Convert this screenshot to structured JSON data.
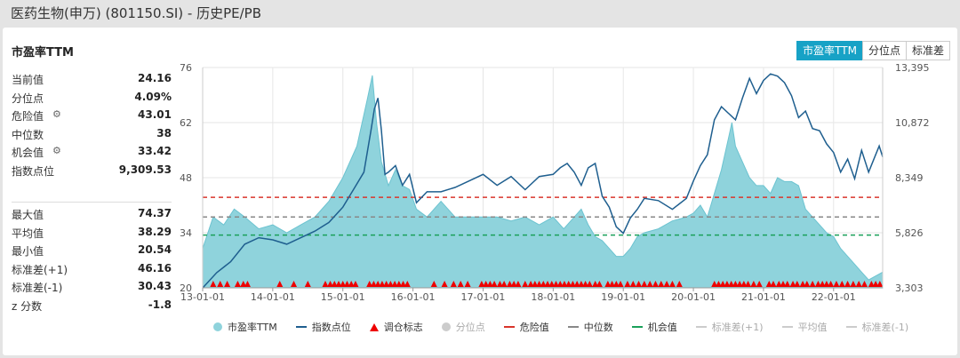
{
  "window_title": "医药生物(申万) (801150.SI) - 历史PE/PB",
  "panel_title": "市盈率TTM",
  "tabs": [
    {
      "label": "市盈率TTM",
      "active": true
    },
    {
      "label": "分位点",
      "active": false
    },
    {
      "label": "标准差",
      "active": false
    }
  ],
  "stats_top": [
    {
      "label": "当前值",
      "value": "24.16",
      "gear": false
    },
    {
      "label": "分位点",
      "value": "4.09%",
      "gear": false
    },
    {
      "label": "危险值",
      "value": "43.01",
      "gear": true
    },
    {
      "label": "中位数",
      "value": "38",
      "gear": false
    },
    {
      "label": "机会值",
      "value": "33.42",
      "gear": true
    },
    {
      "label": "指数点位",
      "value": "9,309.53",
      "gear": false
    }
  ],
  "stats_bottom": [
    {
      "label": "最大值",
      "value": "74.37"
    },
    {
      "label": "平均值",
      "value": "38.29"
    },
    {
      "label": "最小值",
      "value": "20.54"
    },
    {
      "label": "标准差(+1)",
      "value": "46.16"
    },
    {
      "label": "标准差(-1)",
      "value": "30.43"
    },
    {
      "label": "z 分数",
      "value": "-1.8"
    }
  ],
  "legend": [
    {
      "label": "市盈率TTM",
      "type": "dot",
      "color": "#8fd3dc",
      "active": true
    },
    {
      "label": "指数点位",
      "type": "line",
      "color": "#1f5f8f",
      "active": true
    },
    {
      "label": "调仓标志",
      "type": "triangle",
      "color": "#ee0000",
      "active": true
    },
    {
      "label": "分位点",
      "type": "dot",
      "color": "#cccccc",
      "active": false
    },
    {
      "label": "危险值",
      "type": "dash",
      "color": "#d9342b",
      "active": true
    },
    {
      "label": "中位数",
      "type": "dash",
      "color": "#888888",
      "active": true
    },
    {
      "label": "机会值",
      "type": "dash",
      "color": "#1aa05a",
      "active": true
    },
    {
      "label": "标准差(+1)",
      "type": "dash",
      "color": "#cccccc",
      "active": false
    },
    {
      "label": "平均值",
      "type": "dash",
      "color": "#cccccc",
      "active": false
    },
    {
      "label": "标准差(-1)",
      "type": "dash",
      "color": "#cccccc",
      "active": false
    }
  ],
  "chart_data": {
    "type": "area",
    "x_tick_labels": [
      "13-01-01",
      "14-01-01",
      "15-01-01",
      "16-01-01",
      "17-01-01",
      "18-01-01",
      "19-01-01",
      "20-01-01",
      "21-01-01",
      "22-01-01"
    ],
    "y_left_ticks": [
      "76",
      "62",
      "48",
      "34",
      "20"
    ],
    "y_right_ticks": [
      "13,395",
      "10,872",
      "8,349",
      "5,826",
      "3,303"
    ],
    "ylim_left": [
      20,
      76
    ],
    "ylim_right": [
      3303,
      13395
    ],
    "xlim": [
      2013.0,
      2022.7
    ],
    "reference_lines": {
      "danger": 43.01,
      "median": 38,
      "opportunity": 33.42
    },
    "pe_series": {
      "name": "市盈率TTM",
      "x": [
        2013.0,
        2013.15,
        2013.3,
        2013.45,
        2013.6,
        2013.8,
        2014.0,
        2014.2,
        2014.4,
        2014.6,
        2014.8,
        2015.0,
        2015.2,
        2015.35,
        2015.42,
        2015.48,
        2015.55,
        2015.65,
        2015.75,
        2015.85,
        2015.95,
        2016.05,
        2016.2,
        2016.4,
        2016.6,
        2016.8,
        2017.0,
        2017.2,
        2017.4,
        2017.6,
        2017.8,
        2018.0,
        2018.15,
        2018.3,
        2018.4,
        2018.5,
        2018.6,
        2018.7,
        2018.8,
        2018.9,
        2019.0,
        2019.1,
        2019.2,
        2019.3,
        2019.5,
        2019.7,
        2019.9,
        2020.0,
        2020.1,
        2020.2,
        2020.3,
        2020.4,
        2020.5,
        2020.55,
        2020.6,
        2020.7,
        2020.8,
        2020.9,
        2021.0,
        2021.1,
        2021.2,
        2021.3,
        2021.4,
        2021.5,
        2021.6,
        2021.7,
        2021.8,
        2021.9,
        2022.0,
        2022.1,
        2022.2,
        2022.3,
        2022.4,
        2022.5,
        2022.6,
        2022.7
      ],
      "y": [
        30,
        38,
        36,
        40,
        38,
        35,
        36,
        34,
        36,
        38,
        42,
        48,
        56,
        68,
        74,
        62,
        52,
        46,
        50,
        46,
        45,
        40,
        38,
        42,
        38,
        38,
        38,
        38,
        37,
        38,
        36,
        38,
        35,
        38,
        40,
        36,
        33,
        32,
        30,
        28,
        28,
        30,
        33,
        34,
        35,
        37,
        38,
        39,
        41,
        38,
        44,
        50,
        58,
        62,
        56,
        52,
        48,
        46,
        46,
        44,
        48,
        47,
        47,
        46,
        40,
        38,
        36,
        34,
        33,
        30,
        28,
        26,
        24,
        22,
        23,
        24
      ]
    },
    "index_series": {
      "name": "指数点位",
      "x": [
        2013.0,
        2013.2,
        2013.4,
        2013.6,
        2013.8,
        2014.0,
        2014.2,
        2014.4,
        2014.6,
        2014.8,
        2015.0,
        2015.15,
        2015.3,
        2015.4,
        2015.45,
        2015.5,
        2015.55,
        2015.6,
        2015.65,
        2015.75,
        2015.85,
        2015.95,
        2016.05,
        2016.2,
        2016.4,
        2016.6,
        2016.8,
        2017.0,
        2017.2,
        2017.4,
        2017.6,
        2017.8,
        2018.0,
        2018.1,
        2018.2,
        2018.3,
        2018.4,
        2018.5,
        2018.6,
        2018.7,
        2018.8,
        2018.9,
        2019.0,
        2019.1,
        2019.2,
        2019.3,
        2019.5,
        2019.7,
        2019.9,
        2020.0,
        2020.1,
        2020.2,
        2020.3,
        2020.4,
        2020.5,
        2020.6,
        2020.7,
        2020.8,
        2020.9,
        2021.0,
        2021.1,
        2021.2,
        2021.3,
        2021.4,
        2021.5,
        2021.6,
        2021.7,
        2021.8,
        2021.9,
        2022.0,
        2022.1,
        2022.2,
        2022.3,
        2022.4,
        2022.5,
        2022.6,
        2022.65,
        2022.7
      ],
      "y": [
        3300,
        4000,
        4500,
        5300,
        5600,
        5500,
        5300,
        5600,
        5900,
        6300,
        7000,
        7800,
        8600,
        10500,
        11500,
        12000,
        10500,
        8500,
        8600,
        8900,
        8000,
        8500,
        7200,
        7700,
        7700,
        7900,
        8200,
        8500,
        8000,
        8400,
        7800,
        8400,
        8500,
        8800,
        9000,
        8600,
        8000,
        8800,
        9000,
        7500,
        7000,
        6100,
        5800,
        6500,
        6900,
        7400,
        7300,
        6900,
        7400,
        8200,
        8900,
        9400,
        11000,
        11600,
        11300,
        11000,
        12000,
        12900,
        12200,
        12800,
        13100,
        13000,
        12700,
        12100,
        11100,
        11400,
        10600,
        10500,
        9900,
        9500,
        8600,
        9200,
        8300,
        9600,
        8600,
        9400,
        9800,
        9300
      ]
    },
    "rebalance_markers_x": [
      2013.15,
      2013.25,
      2013.35,
      2013.5,
      2013.58,
      2013.64,
      2014.1,
      2014.3,
      2014.5,
      2014.75,
      2014.82,
      2014.88,
      2014.94,
      2015.0,
      2015.06,
      2015.12,
      2015.18,
      2015.38,
      2015.44,
      2015.5,
      2015.56,
      2015.62,
      2015.68,
      2015.74,
      2015.8,
      2015.86,
      2015.92,
      2016.3,
      2016.45,
      2016.58,
      2016.68,
      2016.78,
      2016.98,
      2017.04,
      2017.1,
      2017.16,
      2017.24,
      2017.3,
      2017.38,
      2017.44,
      2017.5,
      2017.6,
      2017.68,
      2017.74,
      2017.8,
      2017.86,
      2017.92,
      2017.98,
      2018.04,
      2018.1,
      2018.16,
      2018.22,
      2018.28,
      2018.34,
      2018.4,
      2018.46,
      2018.52,
      2018.6,
      2018.66,
      2018.78,
      2018.84,
      2018.9,
      2018.96,
      2019.06,
      2019.14,
      2019.22,
      2019.3,
      2019.38,
      2019.46,
      2019.54,
      2019.62,
      2019.7,
      2019.8,
      2020.3,
      2020.36,
      2020.42,
      2020.48,
      2020.54,
      2020.6,
      2020.66,
      2020.72,
      2020.78,
      2020.86,
      2020.94,
      2021.08,
      2021.14,
      2021.22,
      2021.28,
      2021.34,
      2021.42,
      2021.48,
      2021.56,
      2021.62,
      2021.7,
      2021.78,
      2021.84,
      2021.9,
      2021.96,
      2022.04,
      2022.12,
      2022.2,
      2022.28,
      2022.36,
      2022.44,
      2022.54,
      2022.6,
      2022.66
    ]
  }
}
